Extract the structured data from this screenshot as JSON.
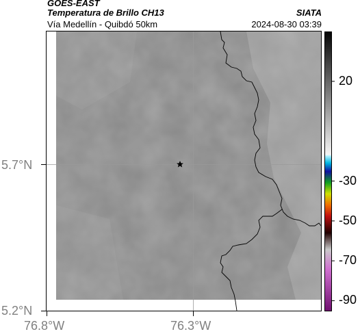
{
  "header": {
    "satellite": "GOES-EAST",
    "product": "Temperatura de Brillo CH13",
    "location": "Vía Medellín - Quibdó 50km",
    "agency": "SIATA",
    "timestamp": "2024-08-30 03:39"
  },
  "map": {
    "lat_labels": [
      "5.7°N",
      "5.2°N"
    ],
    "lon_labels": [
      "76.8°W",
      "76.3°W"
    ],
    "marker": "star-icon",
    "field_color": "#8a8a8a",
    "border_color": "#000000"
  },
  "colorbar": {
    "tick_labels": [
      "20",
      "-30",
      "-50",
      "-70",
      "-90"
    ],
    "tick_values": [
      20,
      -30,
      -50,
      -70,
      -90
    ],
    "range": [
      -95,
      45
    ]
  }
}
